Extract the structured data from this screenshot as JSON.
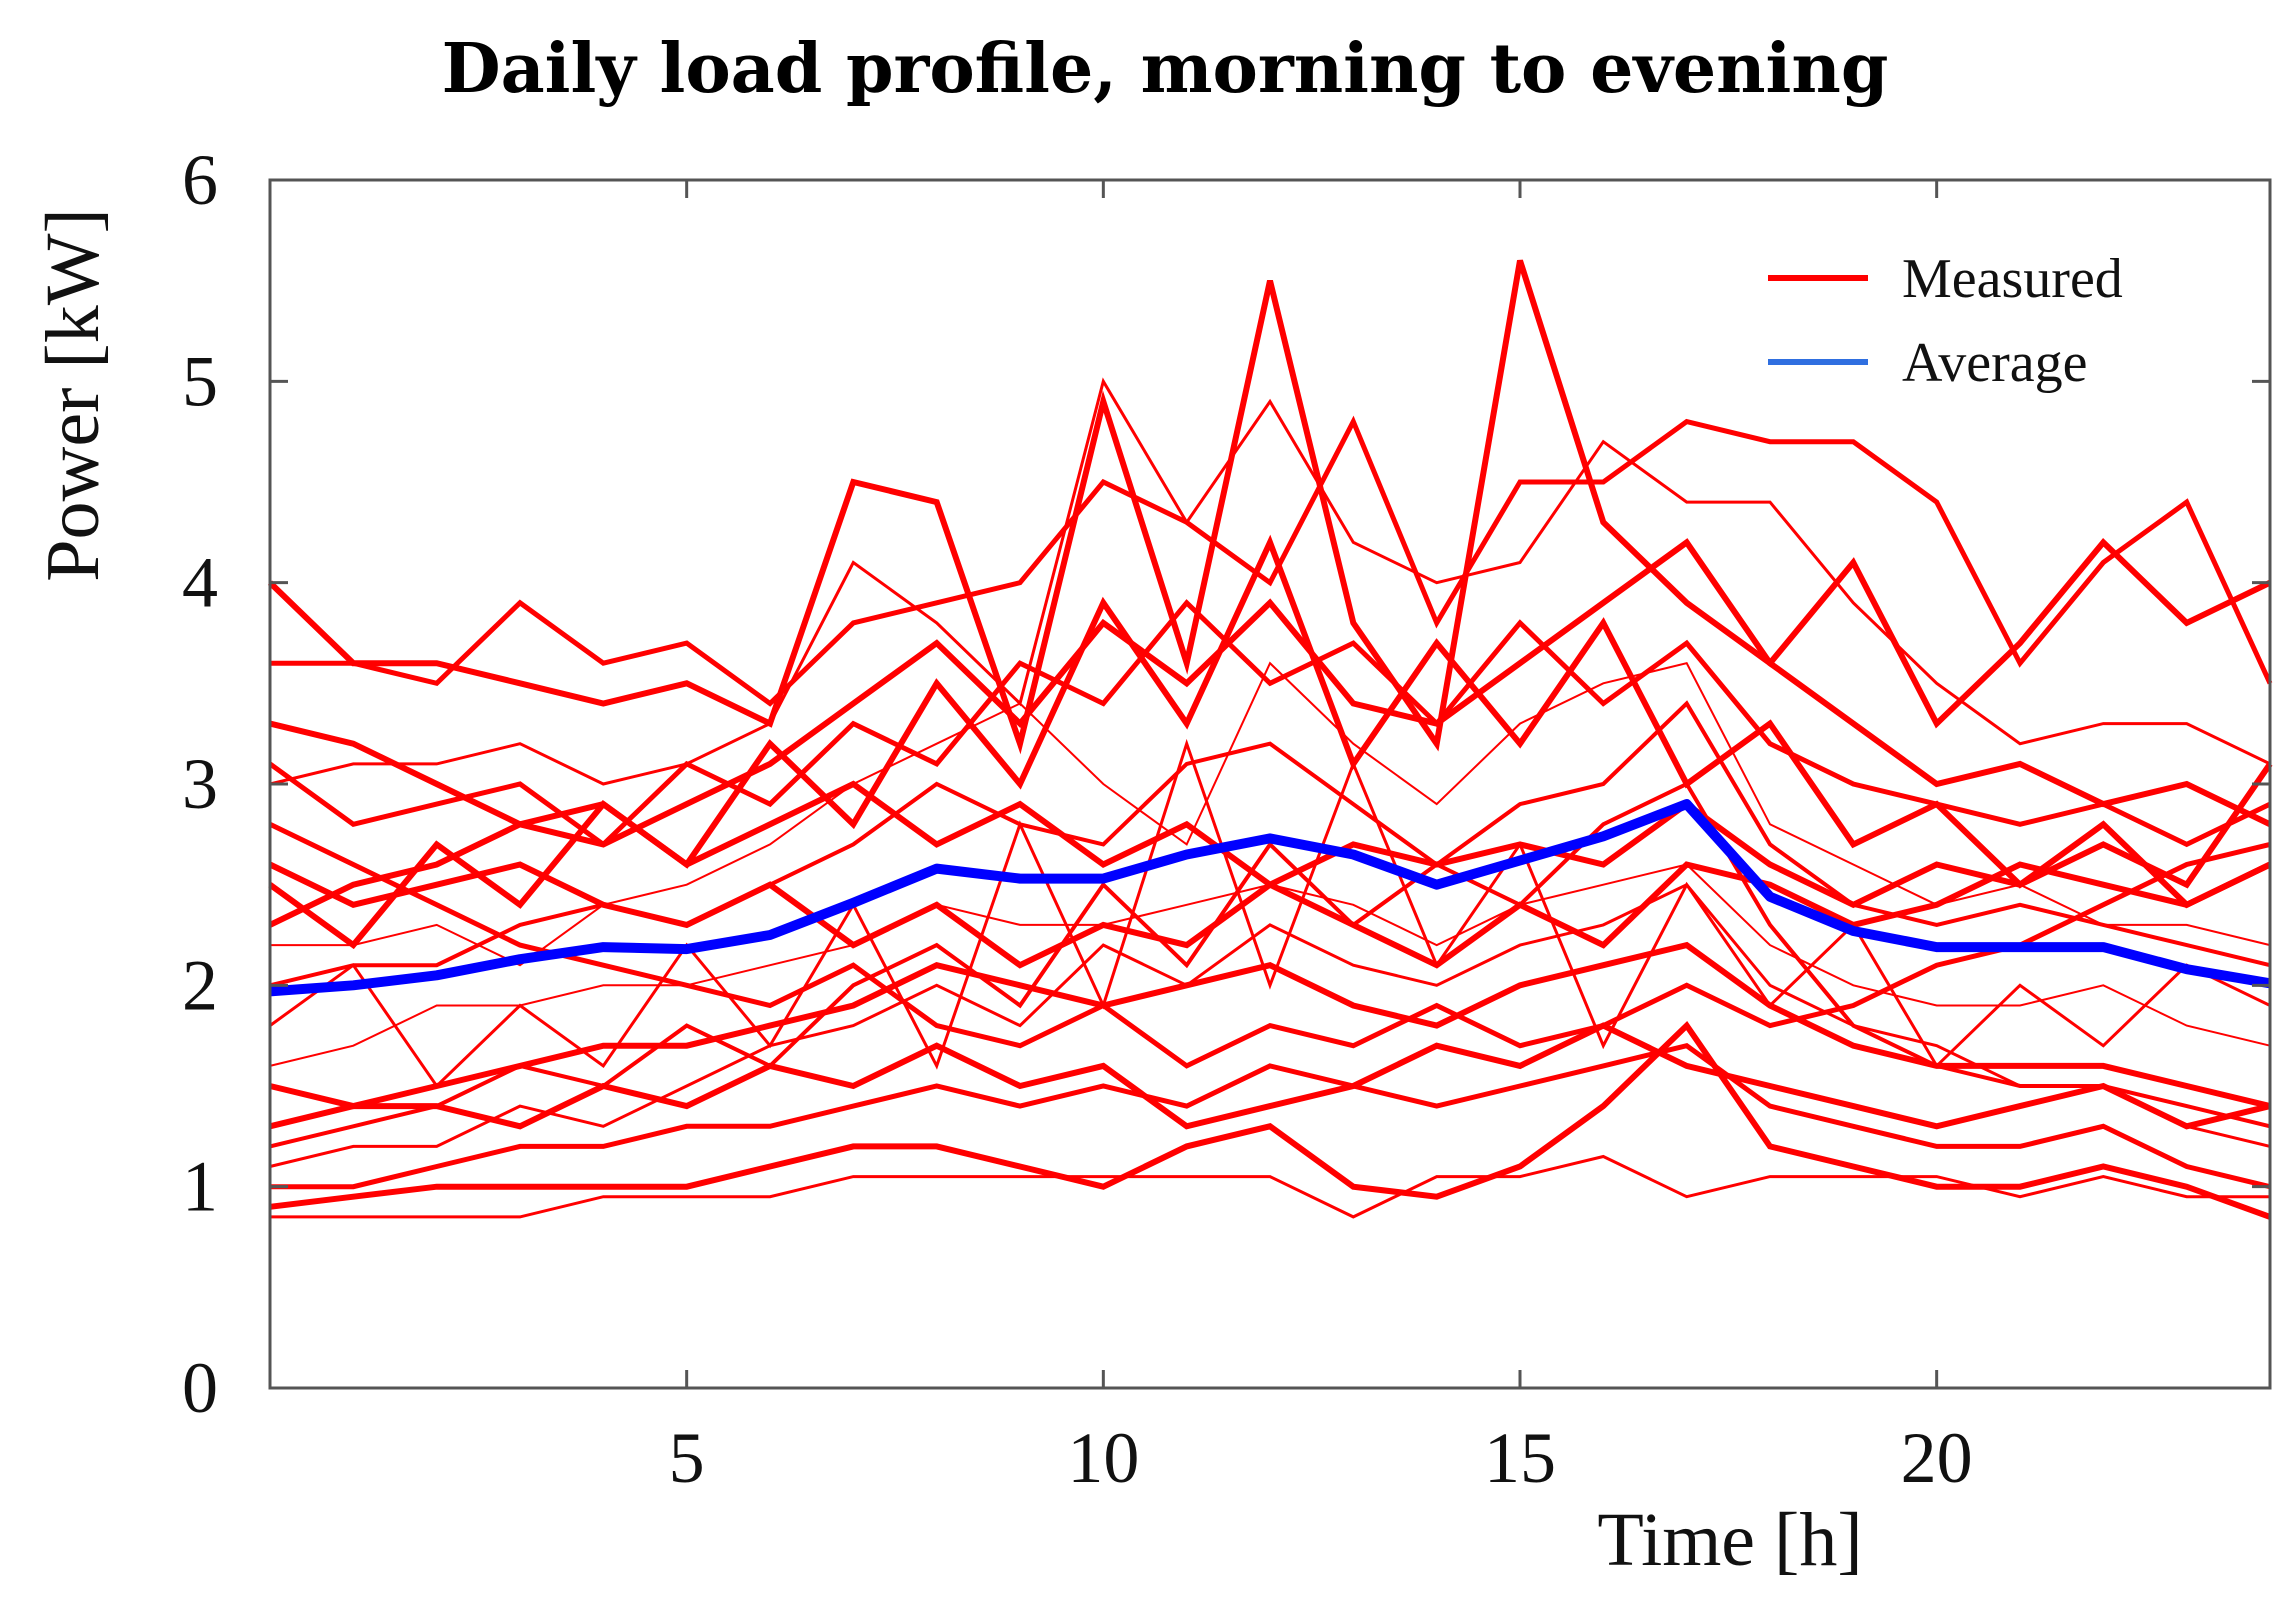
{
  "chart_data": {
    "type": "line",
    "title": "Daily load profile, morning to evening",
    "xlabel": "Time [h]",
    "ylabel": "Power [kW]",
    "xlim": [
      0,
      24
    ],
    "ylim": [
      0,
      6
    ],
    "xticks": [
      5,
      10,
      15,
      20
    ],
    "yticks": [
      0,
      1,
      2,
      3,
      4,
      5,
      6
    ],
    "grid": false,
    "legend_position": "top-right",
    "colors": {
      "measured": "#ff0000",
      "average": "#0000ff",
      "average_legend": "#2f6fe0"
    },
    "x": [
      0,
      1,
      2,
      3,
      4,
      5,
      6,
      7,
      8,
      9,
      10,
      11,
      12,
      13,
      14,
      15,
      16,
      17,
      18,
      19,
      20,
      21,
      22,
      23,
      24
    ],
    "series": [
      {
        "name": "Measured",
        "values": [
          4.0,
          3.6,
          3.6,
          3.5,
          3.4,
          3.5,
          3.3,
          4.5,
          4.4,
          3.2,
          4.9,
          3.6,
          5.5,
          3.8,
          3.2,
          5.6,
          4.3,
          3.9,
          3.6,
          4.1,
          3.3,
          3.7,
          4.2,
          3.8,
          4.0
        ]
      },
      {
        "name": "Measured",
        "values": [
          3.6,
          3.6,
          3.5,
          3.9,
          3.6,
          3.7,
          3.4,
          3.8,
          3.9,
          4.0,
          4.5,
          4.3,
          4.0,
          4.8,
          3.8,
          4.5,
          4.5,
          4.8,
          4.7,
          4.7,
          4.4,
          3.6,
          4.1,
          4.4,
          3.5
        ]
      },
      {
        "name": "Measured",
        "values": [
          3.0,
          3.1,
          3.1,
          3.2,
          3.0,
          3.1,
          3.3,
          4.1,
          3.8,
          3.4,
          5.0,
          4.3,
          4.9,
          4.2,
          4.0,
          4.1,
          4.7,
          4.4,
          4.4,
          3.9,
          3.5,
          3.2,
          3.3,
          3.3,
          3.1
        ]
      },
      {
        "name": "Measured",
        "values": [
          2.3,
          2.5,
          2.6,
          2.8,
          2.7,
          2.9,
          3.1,
          3.4,
          3.7,
          3.3,
          3.8,
          3.5,
          3.9,
          3.4,
          3.3,
          3.6,
          3.9,
          4.2,
          3.6,
          3.3,
          3.0,
          3.1,
          2.9,
          3.0,
          2.8
        ]
      },
      {
        "name": "Measured",
        "values": [
          2.0,
          2.1,
          2.1,
          2.3,
          2.4,
          2.3,
          2.5,
          2.7,
          3.0,
          2.8,
          2.7,
          3.1,
          3.2,
          2.9,
          2.6,
          2.9,
          3.0,
          3.4,
          2.7,
          2.4,
          2.3,
          2.4,
          2.3,
          2.2,
          2.1
        ]
      },
      {
        "name": "Measured",
        "values": [
          1.6,
          1.7,
          1.9,
          1.9,
          2.0,
          2.0,
          2.1,
          2.2,
          2.4,
          2.3,
          2.3,
          2.4,
          2.5,
          2.4,
          2.2,
          2.4,
          2.5,
          2.6,
          2.2,
          2.0,
          1.9,
          1.9,
          2.0,
          1.8,
          1.7
        ]
      },
      {
        "name": "Measured",
        "values": [
          1.3,
          1.4,
          1.5,
          1.6,
          1.7,
          1.7,
          1.8,
          1.9,
          2.1,
          2.0,
          1.9,
          2.0,
          2.1,
          1.9,
          1.8,
          2.0,
          2.1,
          2.2,
          1.9,
          1.7,
          1.6,
          1.6,
          1.6,
          1.5,
          1.4
        ]
      },
      {
        "name": "Measured",
        "values": [
          1.0,
          1.0,
          1.1,
          1.2,
          1.2,
          1.3,
          1.3,
          1.4,
          1.5,
          1.4,
          1.5,
          1.4,
          1.6,
          1.5,
          1.4,
          1.5,
          1.6,
          1.7,
          1.4,
          1.3,
          1.2,
          1.2,
          1.3,
          1.1,
          1.0
        ]
      },
      {
        "name": "Measured",
        "values": [
          0.85,
          0.85,
          0.85,
          0.85,
          0.95,
          0.95,
          0.95,
          1.05,
          1.05,
          1.05,
          1.05,
          1.05,
          1.05,
          0.85,
          1.05,
          1.05,
          1.15,
          0.95,
          1.05,
          1.05,
          1.05,
          0.95,
          1.05,
          0.95,
          0.95
        ]
      },
      {
        "name": "Measured",
        "values": [
          0.9,
          0.95,
          1.0,
          1.0,
          1.0,
          1.0,
          1.1,
          1.2,
          1.2,
          1.1,
          1.0,
          1.2,
          1.3,
          1.0,
          0.95,
          1.1,
          1.4,
          1.8,
          1.2,
          1.1,
          1.0,
          1.0,
          1.1,
          1.0,
          0.85
        ]
      },
      {
        "name": "Measured",
        "values": [
          3.3,
          3.2,
          3.0,
          2.8,
          2.9,
          2.6,
          2.8,
          3.0,
          2.7,
          2.9,
          2.6,
          2.8,
          2.5,
          2.7,
          2.6,
          2.7,
          2.6,
          2.9,
          2.6,
          2.4,
          2.6,
          2.5,
          2.7,
          2.5,
          3.1
        ]
      },
      {
        "name": "Measured",
        "values": [
          2.8,
          2.6,
          2.4,
          2.2,
          2.1,
          2.0,
          1.9,
          2.1,
          1.8,
          1.7,
          1.9,
          1.6,
          1.8,
          1.7,
          1.9,
          1.7,
          1.8,
          2.0,
          1.8,
          1.9,
          2.1,
          2.2,
          2.4,
          2.6,
          2.7
        ]
      },
      {
        "name": "Measured",
        "values": [
          1.8,
          2.1,
          1.5,
          1.9,
          1.6,
          2.2,
          1.7,
          2.4,
          1.6,
          2.8,
          1.9,
          3.2,
          2.0,
          3.1,
          2.1,
          2.7,
          1.7,
          2.5,
          1.9,
          2.3,
          1.6,
          2.0,
          1.7,
          2.1,
          1.9
        ]
      },
      {
        "name": "Measured",
        "values": [
          2.5,
          2.2,
          2.7,
          2.4,
          2.9,
          2.6,
          3.2,
          2.8,
          3.5,
          3.0,
          3.9,
          3.3,
          4.2,
          3.1,
          3.7,
          3.2,
          3.8,
          3.0,
          3.3,
          2.7,
          2.9,
          2.5,
          2.8,
          2.4,
          2.6
        ]
      },
      {
        "name": "Measured",
        "values": [
          1.2,
          1.3,
          1.4,
          1.6,
          1.5,
          1.8,
          1.6,
          2.0,
          2.2,
          1.9,
          2.5,
          2.1,
          2.7,
          2.3,
          2.6,
          2.4,
          2.8,
          3.0,
          2.3,
          1.8,
          1.6,
          1.5,
          1.5,
          1.4,
          1.3
        ]
      },
      {
        "name": "Measured",
        "values": [
          2.2,
          2.2,
          2.3,
          2.1,
          2.4,
          2.5,
          2.7,
          3.0,
          3.2,
          3.4,
          3.0,
          2.7,
          3.6,
          3.2,
          2.9,
          3.3,
          3.5,
          3.6,
          2.8,
          2.6,
          2.4,
          2.5,
          2.3,
          2.3,
          2.2
        ]
      },
      {
        "name": "Measured",
        "values": [
          1.5,
          1.4,
          1.4,
          1.3,
          1.5,
          1.4,
          1.6,
          1.5,
          1.7,
          1.5,
          1.6,
          1.3,
          1.4,
          1.5,
          1.7,
          1.6,
          1.8,
          1.6,
          1.5,
          1.4,
          1.3,
          1.4,
          1.5,
          1.3,
          1.4
        ]
      },
      {
        "name": "Measured",
        "values": [
          3.1,
          2.8,
          2.9,
          3.0,
          2.7,
          3.1,
          2.9,
          3.3,
          3.1,
          3.6,
          3.4,
          3.9,
          3.5,
          3.7,
          3.3,
          3.8,
          3.4,
          3.7,
          3.2,
          3.0,
          2.9,
          2.8,
          2.9,
          2.7,
          2.9
        ]
      },
      {
        "name": "Measured",
        "values": [
          1.1,
          1.2,
          1.2,
          1.4,
          1.3,
          1.5,
          1.7,
          1.8,
          2.0,
          1.8,
          2.2,
          2.0,
          2.3,
          2.1,
          2.0,
          2.2,
          2.3,
          2.5,
          2.0,
          1.8,
          1.7,
          1.5,
          1.5,
          1.3,
          1.2
        ]
      },
      {
        "name": "Measured",
        "values": [
          2.6,
          2.4,
          2.5,
          2.6,
          2.4,
          2.3,
          2.5,
          2.2,
          2.4,
          2.1,
          2.3,
          2.2,
          2.5,
          2.3,
          2.1,
          2.4,
          2.2,
          2.6,
          2.5,
          2.3,
          2.4,
          2.6,
          2.5,
          2.4,
          2.6
        ]
      },
      {
        "name": "Average",
        "values": [
          1.97,
          2.0,
          2.05,
          2.13,
          2.19,
          2.18,
          2.25,
          2.41,
          2.58,
          2.53,
          2.53,
          2.65,
          2.73,
          2.65,
          2.5,
          2.62,
          2.74,
          2.9,
          2.44,
          2.27,
          2.19,
          2.19,
          2.19,
          2.08,
          2.01
        ]
      }
    ],
    "legend": [
      {
        "label": "Measured",
        "color": "#ff0000"
      },
      {
        "label": "Average",
        "color": "#2f6fe0"
      }
    ]
  }
}
